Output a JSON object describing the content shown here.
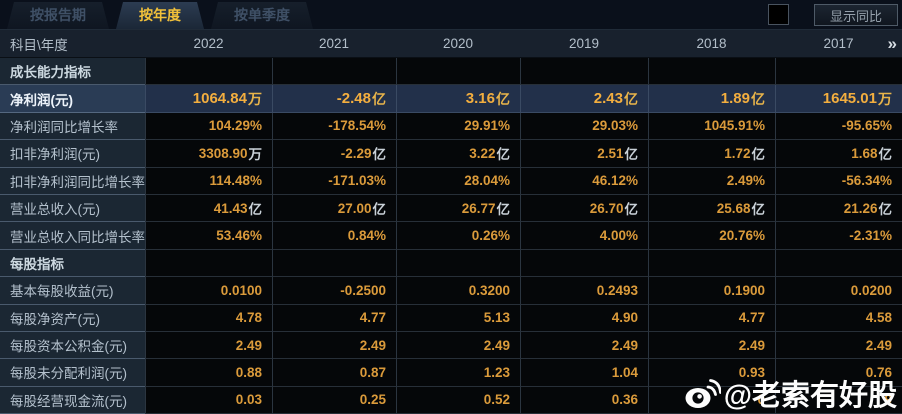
{
  "tabs": [
    {
      "label": "按报告期",
      "active": false
    },
    {
      "label": "按年度",
      "active": true
    },
    {
      "label": "按单季度",
      "active": false
    }
  ],
  "controls": {
    "show_yoy_label": "显示同比"
  },
  "table": {
    "corner_label": "科目\\年度",
    "years": [
      "2022",
      "2021",
      "2020",
      "2019",
      "2018",
      "2017"
    ],
    "more_icon": "»",
    "rows": [
      {
        "type": "section",
        "label": "成长能力指标"
      },
      {
        "type": "data",
        "highlight": true,
        "label": "净利润(元)",
        "values": [
          "1064.84万",
          "-2.48亿",
          "3.16亿",
          "2.43亿",
          "1.89亿",
          "1645.01万"
        ]
      },
      {
        "type": "data",
        "label": "净利润同比增长率",
        "values": [
          "104.29%",
          "-178.54%",
          "29.91%",
          "29.03%",
          "1045.91%",
          "-95.65%"
        ]
      },
      {
        "type": "data",
        "label": "扣非净利润(元)",
        "values": [
          "3308.90万",
          "-2.29亿",
          "3.22亿",
          "2.51亿",
          "1.72亿",
          "1.68亿"
        ]
      },
      {
        "type": "data",
        "label": "扣非净利润同比增长率",
        "values": [
          "114.48%",
          "-171.03%",
          "28.04%",
          "46.12%",
          "2.49%",
          "-56.34%"
        ]
      },
      {
        "type": "data",
        "label": "营业总收入(元)",
        "values": [
          "41.43亿",
          "27.00亿",
          "26.77亿",
          "26.70亿",
          "25.68亿",
          "21.26亿"
        ]
      },
      {
        "type": "data",
        "label": "营业总收入同比增长率",
        "values": [
          "53.46%",
          "0.84%",
          "0.26%",
          "4.00%",
          "20.76%",
          "-2.31%"
        ]
      },
      {
        "type": "section",
        "label": "每股指标"
      },
      {
        "type": "data",
        "label": "基本每股收益(元)",
        "values": [
          "0.0100",
          "-0.2500",
          "0.3200",
          "0.2493",
          "0.1900",
          "0.0200"
        ]
      },
      {
        "type": "data",
        "label": "每股净资产(元)",
        "values": [
          "4.78",
          "4.77",
          "5.13",
          "4.90",
          "4.77",
          "4.58"
        ]
      },
      {
        "type": "data",
        "label": "每股资本公积金(元)",
        "values": [
          "2.49",
          "2.49",
          "2.49",
          "2.49",
          "2.49",
          "2.49"
        ]
      },
      {
        "type": "data",
        "label": "每股未分配利润(元)",
        "values": [
          "0.88",
          "0.87",
          "1.23",
          "1.04",
          "0.93",
          "0.76"
        ]
      },
      {
        "type": "data",
        "label": "每股经营现金流(元)",
        "values": [
          "0.03",
          "0.25",
          "0.52",
          "0.36",
          "0",
          "9"
        ]
      }
    ]
  },
  "watermark": {
    "text": "@老索有好股"
  }
}
